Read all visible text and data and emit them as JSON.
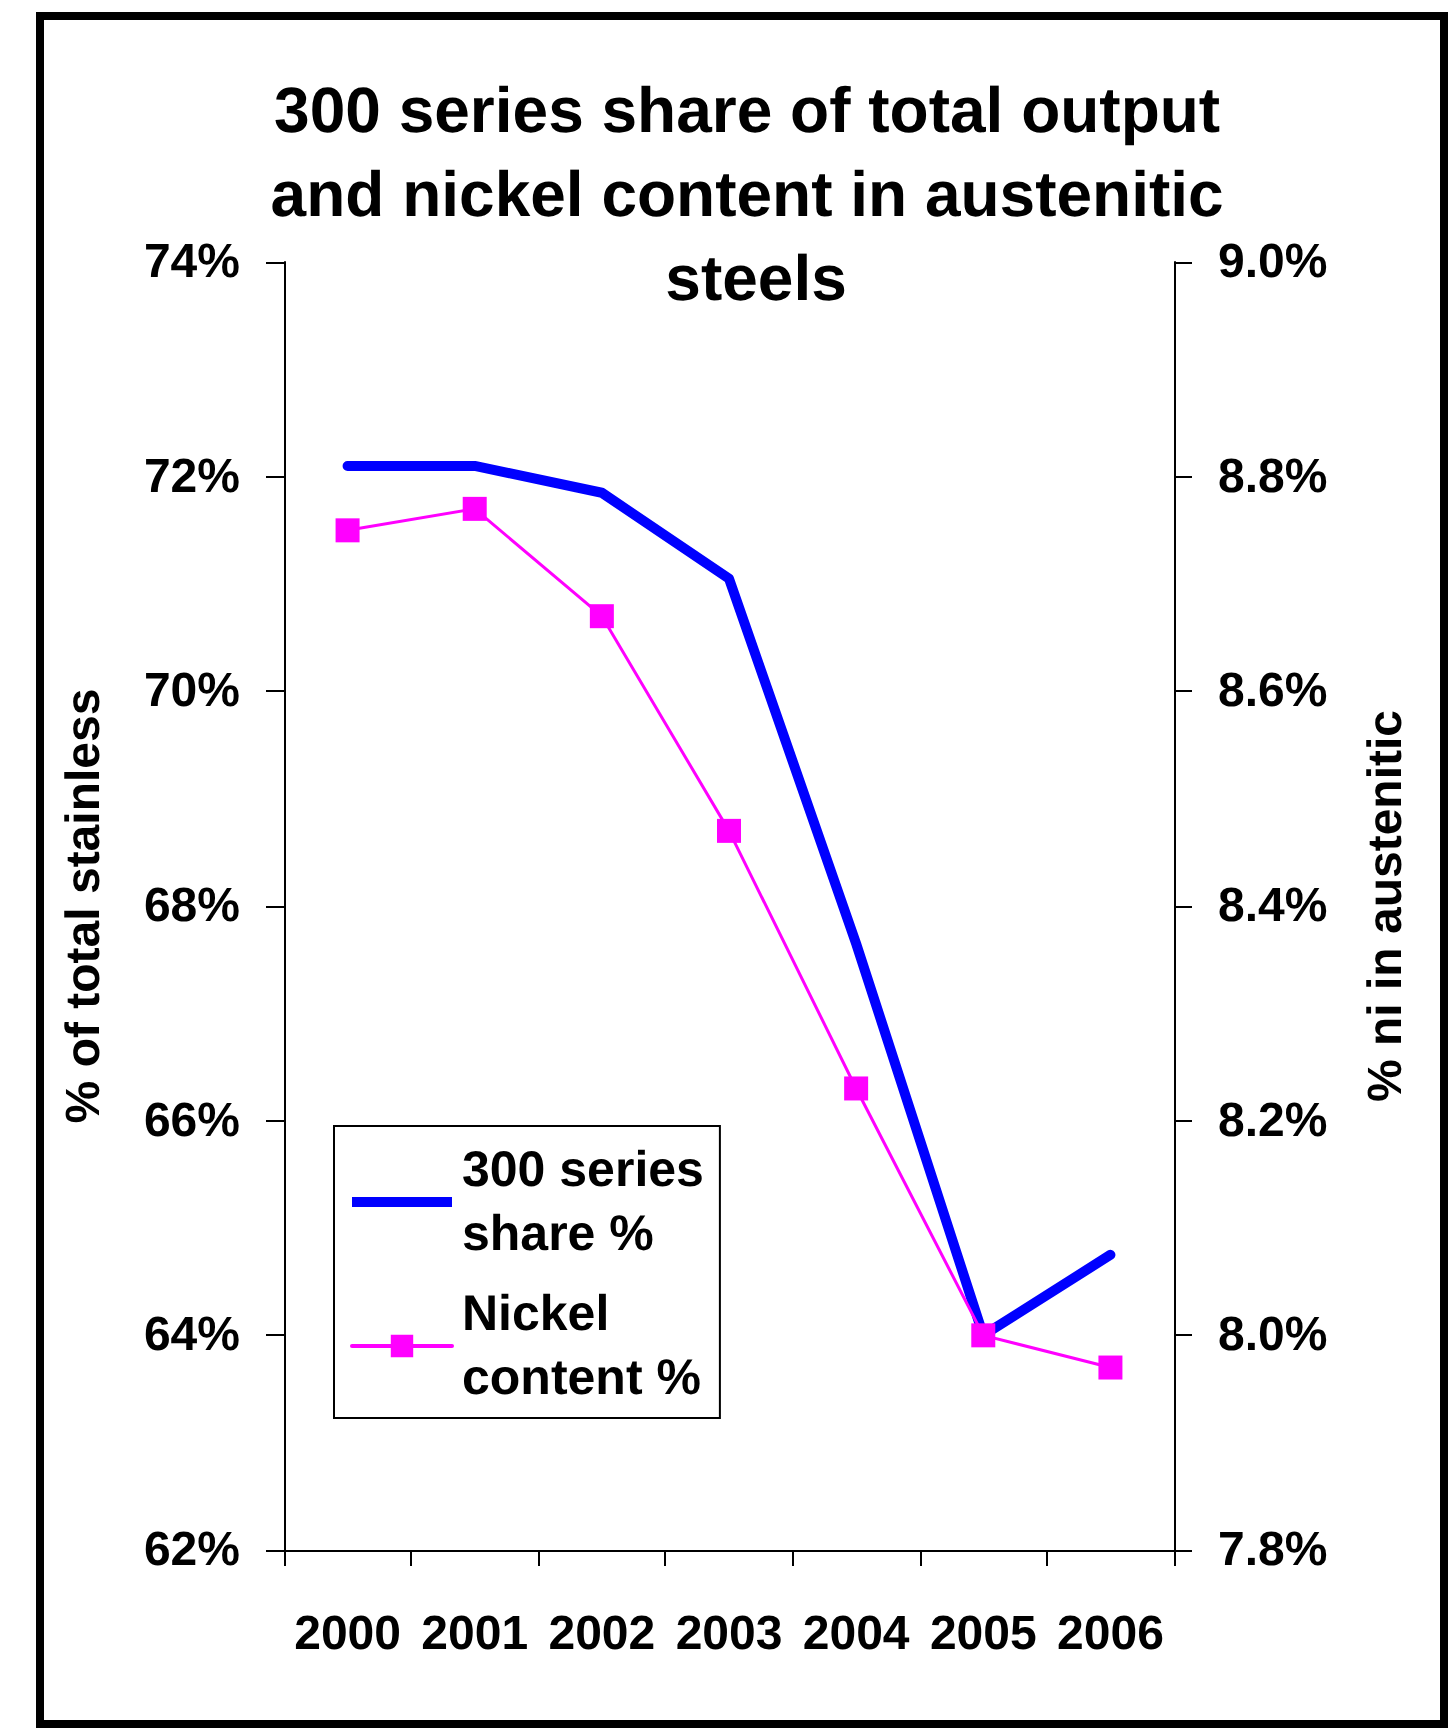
{
  "chart_data": {
    "type": "line",
    "title": "300 series share of total output and nickel content in austenitic steels",
    "ylabel": "% of total stainless",
    "y2label": "% ni in austenitic",
    "categories": [
      "2000",
      "2001",
      "2002",
      "2003",
      "2004",
      "2005",
      "2006"
    ],
    "series": [
      {
        "name": "300 series share %",
        "color": "#0000ff",
        "marker": "none",
        "values": [
          72.1,
          72.1,
          71.85,
          71.05,
          67.65,
          64.0,
          64.75
        ]
      },
      {
        "name": "Nickel content %",
        "color": "#ff00ff",
        "axis": "y2",
        "marker": "square",
        "values": [
          8.75,
          8.77,
          8.67,
          8.47,
          8.23,
          8.0,
          7.97
        ]
      }
    ],
    "ylim": [
      62,
      74
    ],
    "yticks": [
      {
        "value": 62,
        "label": "62%"
      },
      {
        "value": 64,
        "label": "64%"
      },
      {
        "value": 66,
        "label": "66%"
      },
      {
        "value": 68,
        "label": "68%"
      },
      {
        "value": 70,
        "label": "70%"
      },
      {
        "value": 72,
        "label": "72%"
      },
      {
        "value": 74,
        "label": "74%"
      }
    ],
    "y2lim": [
      7.8,
      9.0
    ],
    "y2ticks": [
      {
        "value": 7.8,
        "label": "7.8%"
      },
      {
        "value": 8.0,
        "label": "8.0%"
      },
      {
        "value": 8.2,
        "label": "8.2%"
      },
      {
        "value": 8.4,
        "label": "8.4%"
      },
      {
        "value": 8.6,
        "label": "8.6%"
      },
      {
        "value": 8.8,
        "label": "8.8%"
      },
      {
        "value": 9.0,
        "label": "9.0%"
      }
    ],
    "legend": "bottom left",
    "line_style": "solid"
  }
}
